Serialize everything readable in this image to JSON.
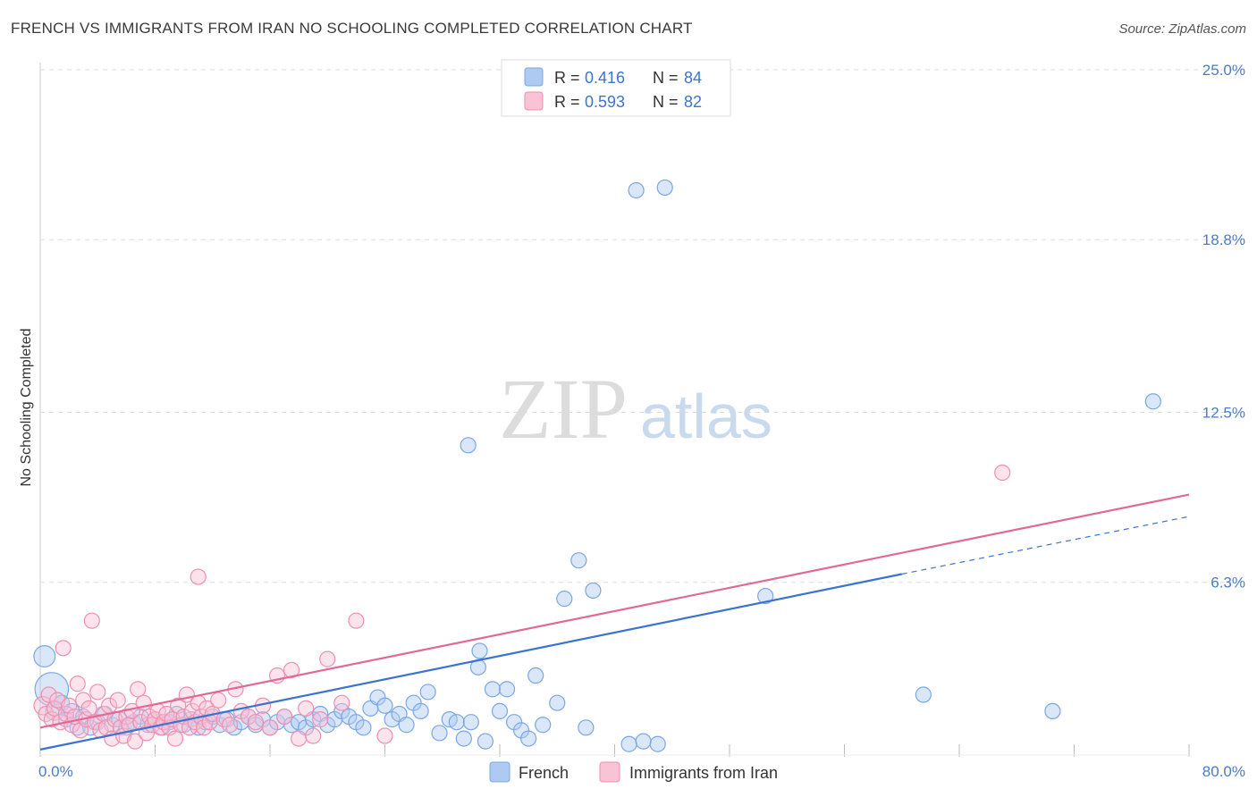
{
  "header": {
    "title": "FRENCH VS IMMIGRANTS FROM IRAN NO SCHOOLING COMPLETED CORRELATION CHART",
    "source": "Source: ZipAtlas.com"
  },
  "watermark": {
    "zip": "ZIP",
    "atlas": "atlas"
  },
  "legend": {
    "r_label": "R =",
    "n_label": "N =",
    "french_r": "0.416",
    "french_n": "84",
    "iran_r": "0.593",
    "iran_n": "82"
  },
  "chart_data": {
    "type": "scatter",
    "title": "FRENCH VS IMMIGRANTS FROM IRAN NO SCHOOLING COMPLETED CORRELATION CHART",
    "xlabel": "",
    "ylabel": "No Schooling Completed",
    "xlim": [
      0,
      80
    ],
    "ylim": [
      0,
      25
    ],
    "x_tick_labels": [
      "0.0%",
      "80.0%"
    ],
    "y_tick_labels": [
      "6.3%",
      "12.5%",
      "18.8%",
      "25.0%"
    ],
    "y_ticks": [
      6.3,
      12.5,
      18.8,
      25.0
    ],
    "grid": true,
    "colors": {
      "French": "#7aa7e6",
      "Immigrants from Iran": "#f08fb0",
      "french_line": "#3a74d0",
      "iran_line": "#e06a95"
    },
    "series": [
      {
        "name": "French",
        "r": 0.416,
        "n": 84,
        "trend": {
          "x": [
            0,
            60
          ],
          "y": [
            0.2,
            6.6
          ],
          "dashed_to": [
            80,
            8.7
          ]
        },
        "points": [
          [
            0.3,
            3.6,
            1.4
          ],
          [
            0.8,
            2.4,
            2.2
          ],
          [
            1.0,
            1.6,
            1.2
          ],
          [
            1.5,
            1.9,
            1.0
          ],
          [
            1.8,
            1.3,
            1.0
          ],
          [
            2.2,
            1.6,
            1.0
          ],
          [
            2.6,
            1.0,
            1.0
          ],
          [
            3.0,
            1.4,
            1.0
          ],
          [
            3.5,
            1.0,
            1.0
          ],
          [
            4.0,
            1.2,
            1.0
          ],
          [
            4.5,
            1.5,
            1.0
          ],
          [
            5.0,
            1.1,
            1.0
          ],
          [
            5.5,
            1.3,
            1.0
          ],
          [
            6.0,
            1.0,
            1.0
          ],
          [
            6.5,
            1.2,
            1.0
          ],
          [
            7.0,
            1.4,
            1.0
          ],
          [
            7.5,
            1.1,
            1.0
          ],
          [
            8.0,
            1.3,
            1.0
          ],
          [
            8.5,
            1.0,
            1.0
          ],
          [
            9.0,
            1.2,
            1.0
          ],
          [
            9.5,
            1.5,
            1.0
          ],
          [
            10.0,
            1.1,
            1.0
          ],
          [
            10.5,
            1.3,
            1.0
          ],
          [
            11.0,
            1.0,
            1.0
          ],
          [
            11.5,
            1.2,
            1.0
          ],
          [
            12.0,
            1.4,
            1.0
          ],
          [
            12.5,
            1.1,
            1.0
          ],
          [
            13.0,
            1.3,
            1.0
          ],
          [
            13.5,
            1.0,
            1.0
          ],
          [
            14.0,
            1.2,
            1.0
          ],
          [
            14.5,
            1.4,
            1.0
          ],
          [
            15.0,
            1.1,
            1.0
          ],
          [
            15.5,
            1.3,
            1.0
          ],
          [
            16.0,
            1.0,
            1.0
          ],
          [
            16.5,
            1.2,
            1.0
          ],
          [
            17.0,
            1.4,
            1.0
          ],
          [
            17.5,
            1.1,
            1.0
          ],
          [
            18.0,
            1.2,
            1.0
          ],
          [
            18.5,
            1.0,
            1.0
          ],
          [
            19.0,
            1.3,
            1.0
          ],
          [
            19.5,
            1.5,
            1.0
          ],
          [
            20.0,
            1.1,
            1.0
          ],
          [
            20.5,
            1.3,
            1.0
          ],
          [
            21.0,
            1.6,
            1.0
          ],
          [
            21.5,
            1.4,
            1.0
          ],
          [
            22.0,
            1.2,
            1.0
          ],
          [
            22.5,
            1.0,
            1.0
          ],
          [
            23.0,
            1.7,
            1.0
          ],
          [
            23.5,
            2.1,
            1.0
          ],
          [
            24.0,
            1.8,
            1.0
          ],
          [
            24.5,
            1.3,
            1.0
          ],
          [
            25.0,
            1.5,
            1.0
          ],
          [
            25.5,
            1.1,
            1.0
          ],
          [
            26.0,
            1.9,
            1.0
          ],
          [
            26.5,
            1.6,
            1.0
          ],
          [
            27.0,
            2.3,
            1.0
          ],
          [
            27.8,
            0.8,
            1.0
          ],
          [
            28.5,
            1.3,
            1.0
          ],
          [
            29.0,
            1.2,
            1.0
          ],
          [
            29.5,
            0.6,
            1.0
          ],
          [
            30.0,
            1.2,
            1.0
          ],
          [
            30.5,
            3.2,
            1.0
          ],
          [
            31.0,
            0.5,
            1.0
          ],
          [
            31.5,
            2.4,
            1.0
          ],
          [
            32.0,
            1.6,
            1.0
          ],
          [
            32.5,
            2.4,
            1.0
          ],
          [
            30.6,
            3.8,
            1.0
          ],
          [
            33.0,
            1.2,
            1.0
          ],
          [
            33.5,
            0.9,
            1.0
          ],
          [
            34.0,
            0.6,
            1.0
          ],
          [
            34.5,
            2.9,
            1.0
          ],
          [
            35.0,
            1.1,
            1.0
          ],
          [
            36.0,
            1.9,
            1.0
          ],
          [
            37.5,
            7.1,
            1.0
          ],
          [
            38.5,
            6.0,
            1.0
          ],
          [
            38.0,
            1.0,
            1.0
          ],
          [
            41.0,
            0.4,
            1.0
          ],
          [
            42.0,
            0.5,
            1.0
          ],
          [
            43.0,
            0.4,
            1.0
          ],
          [
            29.8,
            11.3,
            1.0
          ],
          [
            36.5,
            5.7,
            1.0
          ],
          [
            50.5,
            5.8,
            1.0
          ],
          [
            61.5,
            2.2,
            1.0
          ],
          [
            70.5,
            1.6,
            1.0
          ],
          [
            77.5,
            12.9,
            1.0
          ],
          [
            41.5,
            20.6,
            1.0
          ],
          [
            43.5,
            20.7,
            1.0
          ]
        ]
      },
      {
        "name": "Immigrants from Iran",
        "r": 0.593,
        "n": 82,
        "trend": {
          "x": [
            0,
            80
          ],
          "y": [
            1.0,
            9.5
          ]
        },
        "points": [
          [
            0.2,
            1.8,
            1.2
          ],
          [
            0.4,
            1.5,
            1.0
          ],
          [
            0.6,
            2.2,
            1.0
          ],
          [
            0.8,
            1.3,
            1.0
          ],
          [
            1.0,
            1.7,
            1.0
          ],
          [
            1.2,
            2.0,
            1.0
          ],
          [
            1.4,
            1.2,
            1.0
          ],
          [
            1.6,
            3.9,
            1.0
          ],
          [
            1.8,
            1.5,
            1.0
          ],
          [
            2.0,
            1.8,
            1.0
          ],
          [
            2.2,
            1.1,
            1.0
          ],
          [
            2.4,
            1.4,
            1.0
          ],
          [
            2.6,
            2.6,
            1.0
          ],
          [
            2.8,
            0.9,
            1.0
          ],
          [
            3.0,
            2.0,
            1.0
          ],
          [
            3.2,
            1.3,
            1.0
          ],
          [
            3.4,
            1.7,
            1.0
          ],
          [
            3.6,
            4.9,
            1.0
          ],
          [
            3.8,
            1.2,
            1.0
          ],
          [
            4.0,
            2.3,
            1.0
          ],
          [
            4.2,
            0.9,
            1.0
          ],
          [
            4.4,
            1.5,
            1.0
          ],
          [
            4.6,
            1.0,
            1.0
          ],
          [
            4.8,
            1.8,
            1.0
          ],
          [
            5.0,
            0.6,
            1.0
          ],
          [
            5.2,
            1.3,
            1.0
          ],
          [
            5.4,
            2.0,
            1.0
          ],
          [
            5.6,
            1.0,
            1.0
          ],
          [
            5.8,
            0.7,
            1.0
          ],
          [
            6.0,
            1.4,
            1.0
          ],
          [
            6.2,
            1.1,
            1.0
          ],
          [
            6.4,
            1.6,
            1.0
          ],
          [
            6.6,
            0.5,
            1.0
          ],
          [
            6.8,
            2.4,
            1.0
          ],
          [
            7.0,
            1.2,
            1.0
          ],
          [
            7.2,
            1.9,
            1.0
          ],
          [
            7.4,
            0.8,
            1.0
          ],
          [
            7.6,
            1.4,
            1.0
          ],
          [
            7.8,
            1.1,
            1.0
          ],
          [
            8.0,
            1.3,
            1.0
          ],
          [
            8.2,
            1.6,
            1.0
          ],
          [
            8.4,
            1.0,
            1.0
          ],
          [
            8.6,
            1.2,
            1.0
          ],
          [
            8.8,
            1.5,
            1.0
          ],
          [
            9.0,
            1.0,
            1.0
          ],
          [
            9.2,
            1.3,
            1.0
          ],
          [
            9.4,
            0.6,
            1.0
          ],
          [
            9.6,
            1.8,
            1.0
          ],
          [
            9.8,
            1.1,
            1.0
          ],
          [
            10.0,
            1.4,
            1.0
          ],
          [
            10.2,
            2.2,
            1.0
          ],
          [
            10.4,
            1.0,
            1.0
          ],
          [
            10.6,
            1.6,
            1.0
          ],
          [
            10.8,
            1.2,
            1.0
          ],
          [
            11.0,
            1.9,
            1.0
          ],
          [
            11.2,
            1.4,
            1.0
          ],
          [
            11.4,
            1.0,
            1.0
          ],
          [
            11.6,
            1.7,
            1.0
          ],
          [
            11.8,
            1.2,
            1.0
          ],
          [
            12.0,
            1.5,
            1.0
          ],
          [
            12.4,
            2.0,
            1.0
          ],
          [
            12.8,
            1.3,
            1.0
          ],
          [
            13.2,
            1.1,
            1.0
          ],
          [
            13.6,
            2.4,
            1.0
          ],
          [
            14.0,
            1.6,
            1.0
          ],
          [
            14.5,
            1.4,
            1.0
          ],
          [
            15.0,
            1.2,
            1.0
          ],
          [
            15.5,
            1.8,
            1.0
          ],
          [
            16.0,
            1.0,
            1.0
          ],
          [
            16.5,
            2.9,
            1.0
          ],
          [
            17.0,
            1.4,
            1.0
          ],
          [
            17.5,
            3.1,
            1.0
          ],
          [
            18.0,
            0.6,
            1.0
          ],
          [
            18.5,
            1.7,
            1.0
          ],
          [
            19.0,
            0.7,
            1.0
          ],
          [
            19.5,
            1.3,
            1.0
          ],
          [
            20.0,
            3.5,
            1.0
          ],
          [
            21.0,
            1.9,
            1.0
          ],
          [
            22.0,
            4.9,
            1.0
          ],
          [
            24.0,
            0.7,
            1.0
          ],
          [
            11.0,
            6.5,
            1.0
          ],
          [
            67.0,
            10.3,
            1.0
          ]
        ]
      }
    ]
  },
  "bottom_legend": {
    "french": "French",
    "iran": "Immigrants from Iran"
  }
}
